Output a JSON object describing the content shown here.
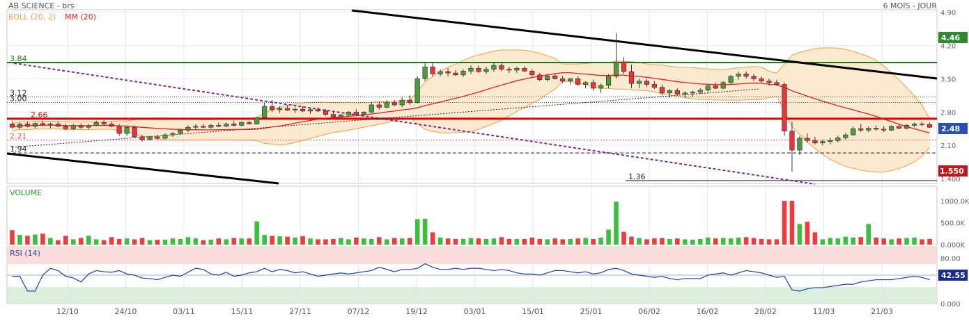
{
  "header": {
    "title": "AB SCIENCE - brs",
    "period": "6 MOIS - JOUR",
    "indicator_boll": "BOLL (20, 2)",
    "indicator_mm": "MM (20)"
  },
  "colors": {
    "up": "#4e9a3c",
    "down": "#e8343a",
    "boll": "#f0a040",
    "boll_fill": "#fbe6c8",
    "mm": "#e02020",
    "rsi": "#1f3fb0",
    "resistance_green": "#1a7a1a",
    "support_red": "#e00000",
    "trend_dotted": "#7a2a8a"
  },
  "price_panel": {
    "y_ticks": [
      "4.90",
      "4.20",
      "3.50",
      "2.80",
      "2.10",
      "1.400"
    ],
    "y_min": 1.4,
    "y_max": 4.9,
    "badge_high": "4.46",
    "badge_last": "2.48",
    "badge_low": "1.550",
    "levels": [
      {
        "label": "3.84",
        "value": 3.84,
        "style": "green"
      },
      {
        "label": "3.12",
        "value": 3.12,
        "style": "dotted"
      },
      {
        "label": "3.00",
        "value": 3.0,
        "style": "dotted"
      },
      {
        "label": "2.66",
        "value": 2.66,
        "style": "red"
      },
      {
        "label": "2.21",
        "value": 2.21,
        "style": "pink"
      },
      {
        "label": "1.94",
        "value": 1.94,
        "style": "dashed"
      },
      {
        "label": "1.36",
        "value": 1.36,
        "style": "black"
      }
    ]
  },
  "volume_panel": {
    "title": "VOLUME",
    "y_ticks": [
      "1000.0K",
      "500.0K",
      "0.000K"
    ]
  },
  "rsi_panel": {
    "title": "RSI (14)",
    "y_ticks": [
      "80.00",
      "0.000"
    ],
    "badge": "42.55"
  },
  "x_labels": [
    "12/10",
    "24/10",
    "03/11",
    "15/11",
    "27/11",
    "07/12",
    "19/12",
    "03/01",
    "15/01",
    "25/01",
    "06/02",
    "16/02",
    "28/02",
    "11/03",
    "21/03"
  ],
  "chart_data": {
    "type": "candlestick",
    "title": "AB SCIENCE - brs",
    "period": "6 MOIS - JOUR",
    "ohlc": [
      [
        2.55,
        2.62,
        2.45,
        2.48
      ],
      [
        2.48,
        2.58,
        2.44,
        2.55
      ],
      [
        2.55,
        2.6,
        2.48,
        2.5
      ],
      [
        2.5,
        2.58,
        2.45,
        2.56
      ],
      [
        2.56,
        2.62,
        2.5,
        2.52
      ],
      [
        2.52,
        2.58,
        2.46,
        2.55
      ],
      [
        2.55,
        2.6,
        2.48,
        2.5
      ],
      [
        2.5,
        2.56,
        2.42,
        2.45
      ],
      [
        2.45,
        2.55,
        2.42,
        2.52
      ],
      [
        2.52,
        2.56,
        2.45,
        2.48
      ],
      [
        2.48,
        2.55,
        2.44,
        2.52
      ],
      [
        2.52,
        2.62,
        2.5,
        2.58
      ],
      [
        2.58,
        2.63,
        2.52,
        2.55
      ],
      [
        2.55,
        2.6,
        2.48,
        2.5
      ],
      [
        2.5,
        2.55,
        2.3,
        2.35
      ],
      [
        2.35,
        2.5,
        2.3,
        2.48
      ],
      [
        2.48,
        2.52,
        2.25,
        2.28
      ],
      [
        2.28,
        2.32,
        2.18,
        2.22
      ],
      [
        2.22,
        2.3,
        2.2,
        2.28
      ],
      [
        2.28,
        2.32,
        2.22,
        2.25
      ],
      [
        2.25,
        2.35,
        2.22,
        2.32
      ],
      [
        2.32,
        2.38,
        2.28,
        2.35
      ],
      [
        2.35,
        2.45,
        2.32,
        2.42
      ],
      [
        2.42,
        2.52,
        2.38,
        2.48
      ],
      [
        2.48,
        2.55,
        2.44,
        2.5
      ],
      [
        2.5,
        2.55,
        2.46,
        2.48
      ],
      [
        2.48,
        2.55,
        2.45,
        2.52
      ],
      [
        2.52,
        2.58,
        2.48,
        2.5
      ],
      [
        2.5,
        2.58,
        2.48,
        2.55
      ],
      [
        2.55,
        2.62,
        2.5,
        2.52
      ],
      [
        2.52,
        2.6,
        2.5,
        2.58
      ],
      [
        2.58,
        2.62,
        2.54,
        2.55
      ],
      [
        2.55,
        2.7,
        2.54,
        2.68
      ],
      [
        2.68,
        3.0,
        2.66,
        2.92
      ],
      [
        2.92,
        3.05,
        2.8,
        2.85
      ],
      [
        2.85,
        2.92,
        2.78,
        2.88
      ],
      [
        2.88,
        2.95,
        2.82,
        2.84
      ],
      [
        2.84,
        2.9,
        2.78,
        2.86
      ],
      [
        2.86,
        2.92,
        2.8,
        2.82
      ],
      [
        2.82,
        2.88,
        2.76,
        2.85
      ],
      [
        2.85,
        2.9,
        2.8,
        2.82
      ],
      [
        2.82,
        2.86,
        2.72,
        2.75
      ],
      [
        2.75,
        2.8,
        2.68,
        2.7
      ],
      [
        2.7,
        2.76,
        2.66,
        2.74
      ],
      [
        2.74,
        2.82,
        2.7,
        2.8
      ],
      [
        2.8,
        2.86,
        2.72,
        2.75
      ],
      [
        2.75,
        2.82,
        2.72,
        2.8
      ],
      [
        2.8,
        3.0,
        2.78,
        2.95
      ],
      [
        2.95,
        3.02,
        2.85,
        2.9
      ],
      [
        2.9,
        3.05,
        2.88,
        3.0
      ],
      [
        3.0,
        3.05,
        2.92,
        2.95
      ],
      [
        2.95,
        3.12,
        2.9,
        3.05
      ],
      [
        3.05,
        3.15,
        2.95,
        3.0
      ],
      [
        3.0,
        3.55,
        2.98,
        3.5
      ],
      [
        3.5,
        3.85,
        3.45,
        3.75
      ],
      [
        3.75,
        3.85,
        3.55,
        3.6
      ],
      [
        3.6,
        3.7,
        3.55,
        3.65
      ],
      [
        3.65,
        3.72,
        3.55,
        3.62
      ],
      [
        3.62,
        3.68,
        3.55,
        3.58
      ],
      [
        3.58,
        3.7,
        3.54,
        3.66
      ],
      [
        3.66,
        3.78,
        3.6,
        3.72
      ],
      [
        3.72,
        3.78,
        3.62,
        3.65
      ],
      [
        3.65,
        3.75,
        3.6,
        3.7
      ],
      [
        3.7,
        3.85,
        3.65,
        3.78
      ],
      [
        3.78,
        3.82,
        3.66,
        3.7
      ],
      [
        3.7,
        3.75,
        3.62,
        3.68
      ],
      [
        3.68,
        3.75,
        3.62,
        3.72
      ],
      [
        3.72,
        3.76,
        3.64,
        3.66
      ],
      [
        3.66,
        3.7,
        3.55,
        3.58
      ],
      [
        3.58,
        3.62,
        3.45,
        3.48
      ],
      [
        3.48,
        3.6,
        3.44,
        3.56
      ],
      [
        3.56,
        3.62,
        3.48,
        3.5
      ],
      [
        3.5,
        3.56,
        3.4,
        3.45
      ],
      [
        3.45,
        3.52,
        3.38,
        3.5
      ],
      [
        3.5,
        3.55,
        3.35,
        3.38
      ],
      [
        3.38,
        3.45,
        3.3,
        3.42
      ],
      [
        3.42,
        3.48,
        3.25,
        3.3
      ],
      [
        3.3,
        3.4,
        3.2,
        3.36
      ],
      [
        3.36,
        3.6,
        3.3,
        3.55
      ],
      [
        3.55,
        4.46,
        3.5,
        3.85
      ],
      [
        3.85,
        3.95,
        3.6,
        3.65
      ],
      [
        3.65,
        3.8,
        3.3,
        3.4
      ],
      [
        3.4,
        3.5,
        3.3,
        3.45
      ],
      [
        3.45,
        3.5,
        3.32,
        3.38
      ],
      [
        3.38,
        3.45,
        3.28,
        3.32
      ],
      [
        3.32,
        3.38,
        3.15,
        3.2
      ],
      [
        3.2,
        3.28,
        3.1,
        3.25
      ],
      [
        3.25,
        3.3,
        3.15,
        3.18
      ],
      [
        3.18,
        3.24,
        3.1,
        3.2
      ],
      [
        3.2,
        3.25,
        3.12,
        3.22
      ],
      [
        3.22,
        3.3,
        3.18,
        3.26
      ],
      [
        3.26,
        3.38,
        3.22,
        3.35
      ],
      [
        3.35,
        3.42,
        3.28,
        3.3
      ],
      [
        3.3,
        3.45,
        3.28,
        3.42
      ],
      [
        3.42,
        3.58,
        3.38,
        3.55
      ],
      [
        3.55,
        3.65,
        3.48,
        3.6
      ],
      [
        3.6,
        3.65,
        3.5,
        3.55
      ],
      [
        3.55,
        3.6,
        3.45,
        3.5
      ],
      [
        3.5,
        3.55,
        3.4,
        3.45
      ],
      [
        3.45,
        3.5,
        3.35,
        3.42
      ],
      [
        3.42,
        3.48,
        3.35,
        3.38
      ],
      [
        3.38,
        3.42,
        2.3,
        2.4
      ],
      [
        2.4,
        2.6,
        1.55,
        2.0
      ],
      [
        2.0,
        2.3,
        1.9,
        2.25
      ],
      [
        2.25,
        2.35,
        2.15,
        2.2
      ],
      [
        2.2,
        2.28,
        2.12,
        2.15
      ],
      [
        2.15,
        2.22,
        2.1,
        2.18
      ],
      [
        2.18,
        2.26,
        2.12,
        2.2
      ],
      [
        2.2,
        2.3,
        2.16,
        2.26
      ],
      [
        2.26,
        2.36,
        2.22,
        2.32
      ],
      [
        2.32,
        2.5,
        2.3,
        2.45
      ],
      [
        2.45,
        2.55,
        2.38,
        2.42
      ],
      [
        2.42,
        2.5,
        2.38,
        2.46
      ],
      [
        2.46,
        2.52,
        2.4,
        2.44
      ],
      [
        2.44,
        2.5,
        2.38,
        2.42
      ],
      [
        2.42,
        2.52,
        2.4,
        2.5
      ],
      [
        2.5,
        2.56,
        2.44,
        2.46
      ],
      [
        2.46,
        2.55,
        2.44,
        2.52
      ],
      [
        2.52,
        2.58,
        2.48,
        2.55
      ],
      [
        2.55,
        2.6,
        2.5,
        2.54
      ],
      [
        2.54,
        2.58,
        2.46,
        2.48
      ]
    ],
    "volume_k": [
      330,
      220,
      200,
      230,
      250,
      150,
      100,
      200,
      120,
      150,
      200,
      120,
      100,
      170,
      130,
      140,
      120,
      150,
      100,
      110,
      110,
      140,
      130,
      170,
      140,
      100,
      110,
      140,
      120,
      150,
      140,
      140,
      530,
      220,
      200,
      190,
      180,
      160,
      190,
      140,
      120,
      120,
      130,
      150,
      120,
      160,
      140,
      130,
      170,
      120,
      150,
      140,
      150,
      580,
      590,
      280,
      160,
      140,
      130,
      130,
      150,
      140,
      130,
      140,
      170,
      130,
      130,
      130,
      160,
      130,
      120,
      140,
      120,
      130,
      140,
      150,
      130,
      160,
      340,
      980,
      290,
      180,
      150,
      120,
      140,
      150,
      130,
      140,
      120,
      110,
      130,
      160,
      140,
      150,
      140,
      160,
      170,
      150,
      130,
      120,
      120,
      1020,
      1060,
      470,
      520,
      280,
      120,
      150,
      140,
      180,
      160,
      170,
      470,
      160,
      140,
      120,
      140,
      150,
      160,
      120,
      130
    ],
    "rsi": [
      48,
      48,
      22,
      22,
      50,
      62,
      58,
      48,
      45,
      38,
      52,
      58,
      56,
      55,
      58,
      52,
      50,
      45,
      44,
      42,
      46,
      50,
      48,
      55,
      62,
      60,
      52,
      50,
      55,
      48,
      50,
      54,
      56,
      62,
      56,
      60,
      58,
      54,
      56,
      52,
      48,
      50,
      52,
      54,
      52,
      54,
      56,
      58,
      64,
      60,
      56,
      60,
      60,
      62,
      70,
      64,
      60,
      60,
      62,
      60,
      62,
      62,
      60,
      58,
      60,
      58,
      54,
      52,
      52,
      50,
      54,
      58,
      58,
      56,
      54,
      56,
      52,
      54,
      60,
      62,
      58,
      52,
      50,
      48,
      46,
      48,
      44,
      42,
      44,
      44,
      44,
      50,
      52,
      54,
      50,
      54,
      58,
      56,
      54,
      50,
      46,
      48,
      24,
      22,
      26,
      28,
      28,
      30,
      32,
      34,
      34,
      38,
      40,
      42,
      42,
      42,
      44,
      46,
      48,
      46,
      42
    ],
    "bollinger": {
      "period": 20,
      "stddev": 2
    },
    "moving_average": {
      "period": 20
    }
  }
}
